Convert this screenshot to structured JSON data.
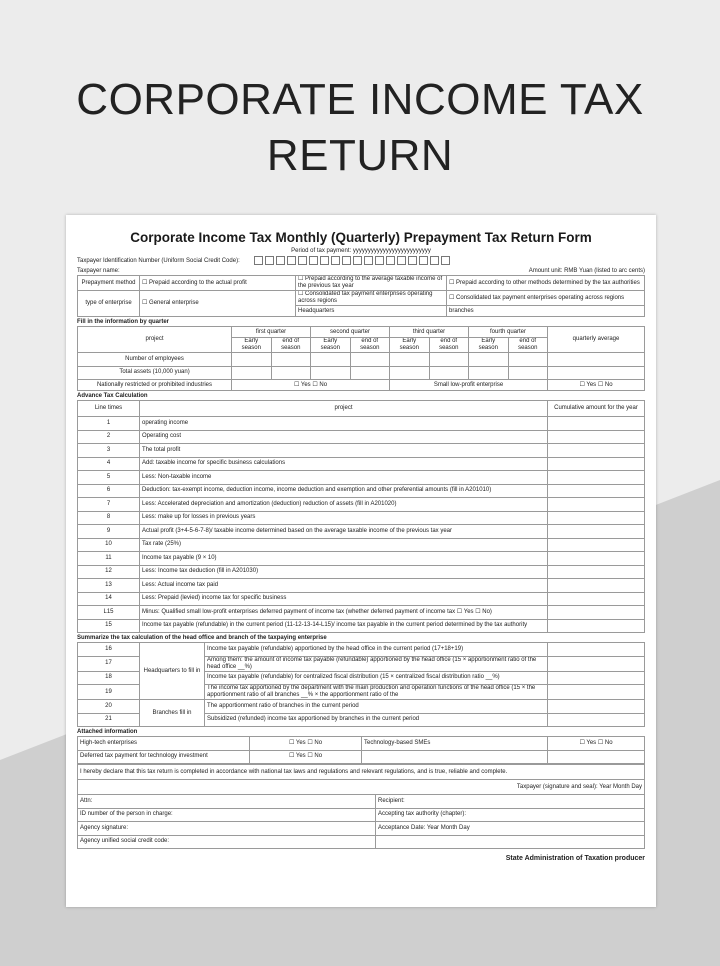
{
  "hero_title_line1": "CORPORATE INCOME TAX",
  "hero_title_line2": "RETURN",
  "form": {
    "title": "Corporate Income Tax Monthly (Quarterly) Prepayment Tax Return Form",
    "period": "Period of tax payment: yyyyyyyyyyyyyyyyyyyyyyyyyy",
    "tin_label": "Taxpayer Identification Number (Uniform Social Credit Code):",
    "taxpayer_name": "Taxpayer name:",
    "amount_unit": "Amount unit: RMB Yuan (listed to arc cents)",
    "prepayment_method": "Prepayment method",
    "pm_opt1": "☐ Prepaid according to the actual profit",
    "pm_opt2": "☐ Prepaid according to the average taxable income of the previous tax year",
    "pm_opt3": "☐ Prepaid according to other methods determined by the tax authorities",
    "type_label": "type of enterprise",
    "type_opt1": "☐ General enterprise",
    "type_opt2": "☐ Consolidated tax payment enterprises operating across regions",
    "type_opt3": "☐ Consolidated tax payment enterprises operating across regions",
    "headquarters": "Headquarters",
    "branches": "branches",
    "quarter_section": "Fill in the information by quarter",
    "project": "project",
    "quarters": [
      "first quarter",
      "second quarter",
      "third quarter",
      "fourth quarter"
    ],
    "early": "Early season",
    "end": "end of season",
    "quarterly_average": "quarterly average",
    "employees": "Number of employees",
    "total_assets": "Total assets (10,000 yuan)",
    "restricted": "Nationally restricted or prohibited industries",
    "yes_no": "☐ Yes ☐ No",
    "small_low_profit": "Small low-profit enterprise",
    "advance_section": "Advance Tax Calculation",
    "line_times": "Line times",
    "cumulative": "Cumulative amount for the year",
    "lines": [
      [
        "1",
        "operating income"
      ],
      [
        "2",
        "Operating cost"
      ],
      [
        "3",
        "The total profit"
      ],
      [
        "4",
        "Add: taxable income for specific business calculations"
      ],
      [
        "5",
        "Less: Non-taxable income"
      ],
      [
        "6",
        "Deduction: tax-exempt income, deduction income, income deduction and exemption and other preferential amounts (fill in A201010)"
      ],
      [
        "7",
        "Less: Accelerated depreciation and amortization (deduction) reduction of assets (fill in A201020)"
      ],
      [
        "8",
        "Less: make up for losses in previous years"
      ],
      [
        "9",
        "Actual profit (3+4-5-6-7-8)/ taxable income determined based on the average taxable income of the previous tax year"
      ],
      [
        "10",
        "Tax rate (25%)"
      ],
      [
        "11",
        "Income tax payable (9 × 10)"
      ],
      [
        "12",
        "Less: Income tax deduction (fill in A201030)"
      ],
      [
        "13",
        "Less: Actual income tax paid"
      ],
      [
        "14",
        "Less: Prepaid (levied) income tax for specific business"
      ],
      [
        "L15",
        "Minus: Qualified small low-profit enterprises deferred payment of income tax (whether deferred payment of income tax ☐ Yes ☐ No)"
      ],
      [
        "15",
        "Income tax payable (refundable) in the current period (11-12-13-14-L15)/ income tax payable in the current period determined by the tax authority"
      ]
    ],
    "summary_section": "Summarize the tax calculation of the head office and branch of the taxpaying enterprise",
    "hq_fill": "Headquarters to fill in",
    "branch_fill": "Branches fill in",
    "summary_lines": [
      [
        "16",
        "Income tax payable (refundable) apportioned by the head office in the current period (17+18+19)"
      ],
      [
        "17",
        "Among them: the amount of income tax payable (refundable) apportioned by the head office (15 × apportionment ratio of the head office __%)"
      ],
      [
        "18",
        "Income tax payable (refundable) for centralized fiscal distribution (15 × centralized fiscal distribution ratio __%)"
      ],
      [
        "19",
        "The income tax apportioned by the department with the main production and operation functions of the head office (15 × the apportionment ratio of all branches __% × the apportionment ratio of the"
      ],
      [
        "20",
        "The apportionment ratio of branches in the current period"
      ],
      [
        "21",
        "Subsidized (refunded) income tax apportioned by branches in the current period"
      ]
    ],
    "attached_section": "Attached information",
    "hightech": "High-tech enterprises",
    "tech_smes": "Technology-based SMEs",
    "deferred": "Deferred tax payment for technology investment",
    "declaration": "I hereby declare that this tax return is completed in accordance with national tax laws and regulations and relevant regulations, and is true, reliable and complete.",
    "signature": "Taxpayer (signature and seal): Year Month Day",
    "attn": "Attn:",
    "recipient": "Recipient:",
    "id_number": "ID number of the person in charge:",
    "accepting_authority": "Accepting tax authority (chapter):",
    "agency_signature": "Agency signature:",
    "acceptance_date": "Acceptance Date: Year Month Day",
    "agency_code": "Agency unified social credit code:",
    "producer": "State Administration of Taxation producer"
  }
}
